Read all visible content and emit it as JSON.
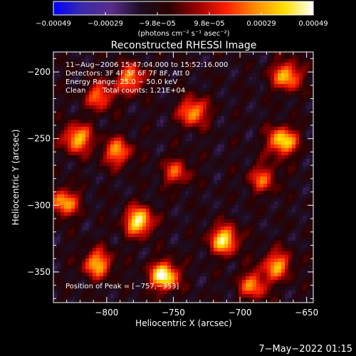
{
  "chart_data": {
    "type": "heatmap",
    "title": "Reconstructed RHESSI Image",
    "xlabel": "Heliocentric X (arcsec)",
    "ylabel": "Heliocentric Y (arcsec)",
    "xlim": [
      -840,
      -645
    ],
    "ylim": [
      -373,
      -185
    ],
    "x_ticks": [
      -800,
      -750,
      -700,
      -650
    ],
    "y_ticks": [
      -200,
      -250,
      -300,
      -350
    ],
    "x_tick_labels": [
      "−800",
      "−750",
      "−700",
      "−650"
    ],
    "y_tick_labels": [
      "−200",
      "−250",
      "−300",
      "−350"
    ],
    "colorbar": {
      "range": [
        -0.00049,
        0.00049
      ],
      "tick_labels": [
        "−0.00049",
        "−0.00029",
        "−9.8e−05",
        "9.8e−05",
        "0.00029",
        "0.00049"
      ],
      "unit_label": "(photons cm⁻² s⁻¹ asec⁻²)",
      "colormap": [
        "#0000ff",
        "#3a2aa8",
        "#5a2d8c",
        "#1c0d22",
        "#2a0000",
        "#9a0000",
        "#ff2000",
        "#ff8c00",
        "#ffe000",
        "#ffffff"
      ]
    },
    "annotations": {
      "time": "11−Aug−2006 15:47:04.000 to 15:52:16.000",
      "detectors": "Detectors: 3F 4F 5F 6F 7F 8F, Att 0",
      "energy": "Energy Range: 25.0 − 50.0 keV",
      "method": "Clean",
      "counts": "Total counts: 1.21E+04",
      "peak": "Position of Peak = [−757,−353]"
    },
    "peak": [
      -757,
      -353
    ],
    "sources": [
      {
        "x": -757,
        "y": -353,
        "peak": 0.00049
      },
      {
        "x": -668,
        "y": -252,
        "peak": 0.00042
      },
      {
        "x": -822,
        "y": -250,
        "peak": 0.00036
      },
      {
        "x": -776,
        "y": -312,
        "peak": 0.00045
      },
      {
        "x": -807,
        "y": -344,
        "peak": 0.00033
      },
      {
        "x": -665,
        "y": -203,
        "peak": 0.00035
      },
      {
        "x": -735,
        "y": -230,
        "peak": 0.00032
      },
      {
        "x": -712,
        "y": -326,
        "peak": 0.00042
      },
      {
        "x": -672,
        "y": -345,
        "peak": 0.0003
      },
      {
        "x": -792,
        "y": -260,
        "peak": 0.00028
      },
      {
        "x": -782,
        "y": -205,
        "peak": 0.00028
      },
      {
        "x": -683,
        "y": -280,
        "peak": 0.0002
      },
      {
        "x": -832,
        "y": -298,
        "peak": 0.00032
      },
      {
        "x": -805,
        "y": -218,
        "peak": 0.00024
      },
      {
        "x": -690,
        "y": -360,
        "peak": 0.00026
      },
      {
        "x": -748,
        "y": -275,
        "peak": 0.00018
      }
    ]
  },
  "footer": {
    "timestamp": "7−May−2022 01:15"
  }
}
